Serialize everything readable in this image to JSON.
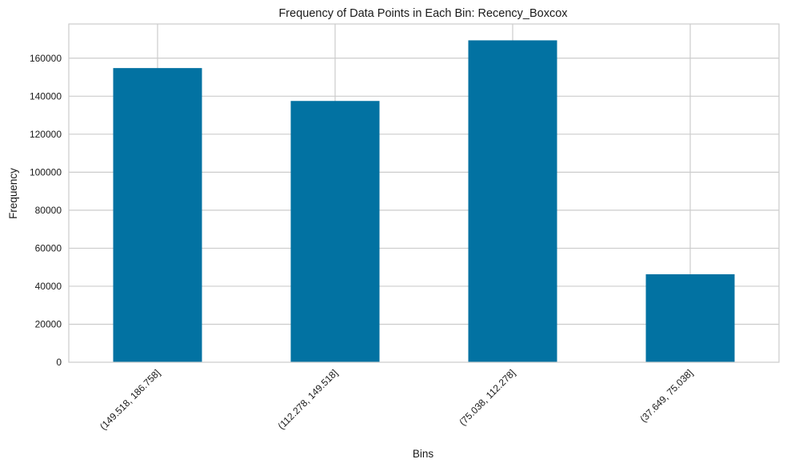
{
  "chart_data": {
    "type": "bar",
    "title": "Frequency of Data Points in Each Bin: Recency_Boxcox",
    "xlabel": "Bins",
    "ylabel": "Frequency",
    "categories": [
      "(149.518, 186.758]",
      "(112.278, 149.518]",
      "(75.038, 112.278]",
      "(37.649, 75.038]"
    ],
    "values": [
      154800,
      137500,
      169400,
      46300
    ],
    "ylim": [
      0,
      178000
    ],
    "yticks": [
      0,
      20000,
      40000,
      60000,
      80000,
      100000,
      120000,
      140000,
      160000
    ],
    "grid": true,
    "bar_color": "#0272a2",
    "grid_color": "#cccccc"
  }
}
